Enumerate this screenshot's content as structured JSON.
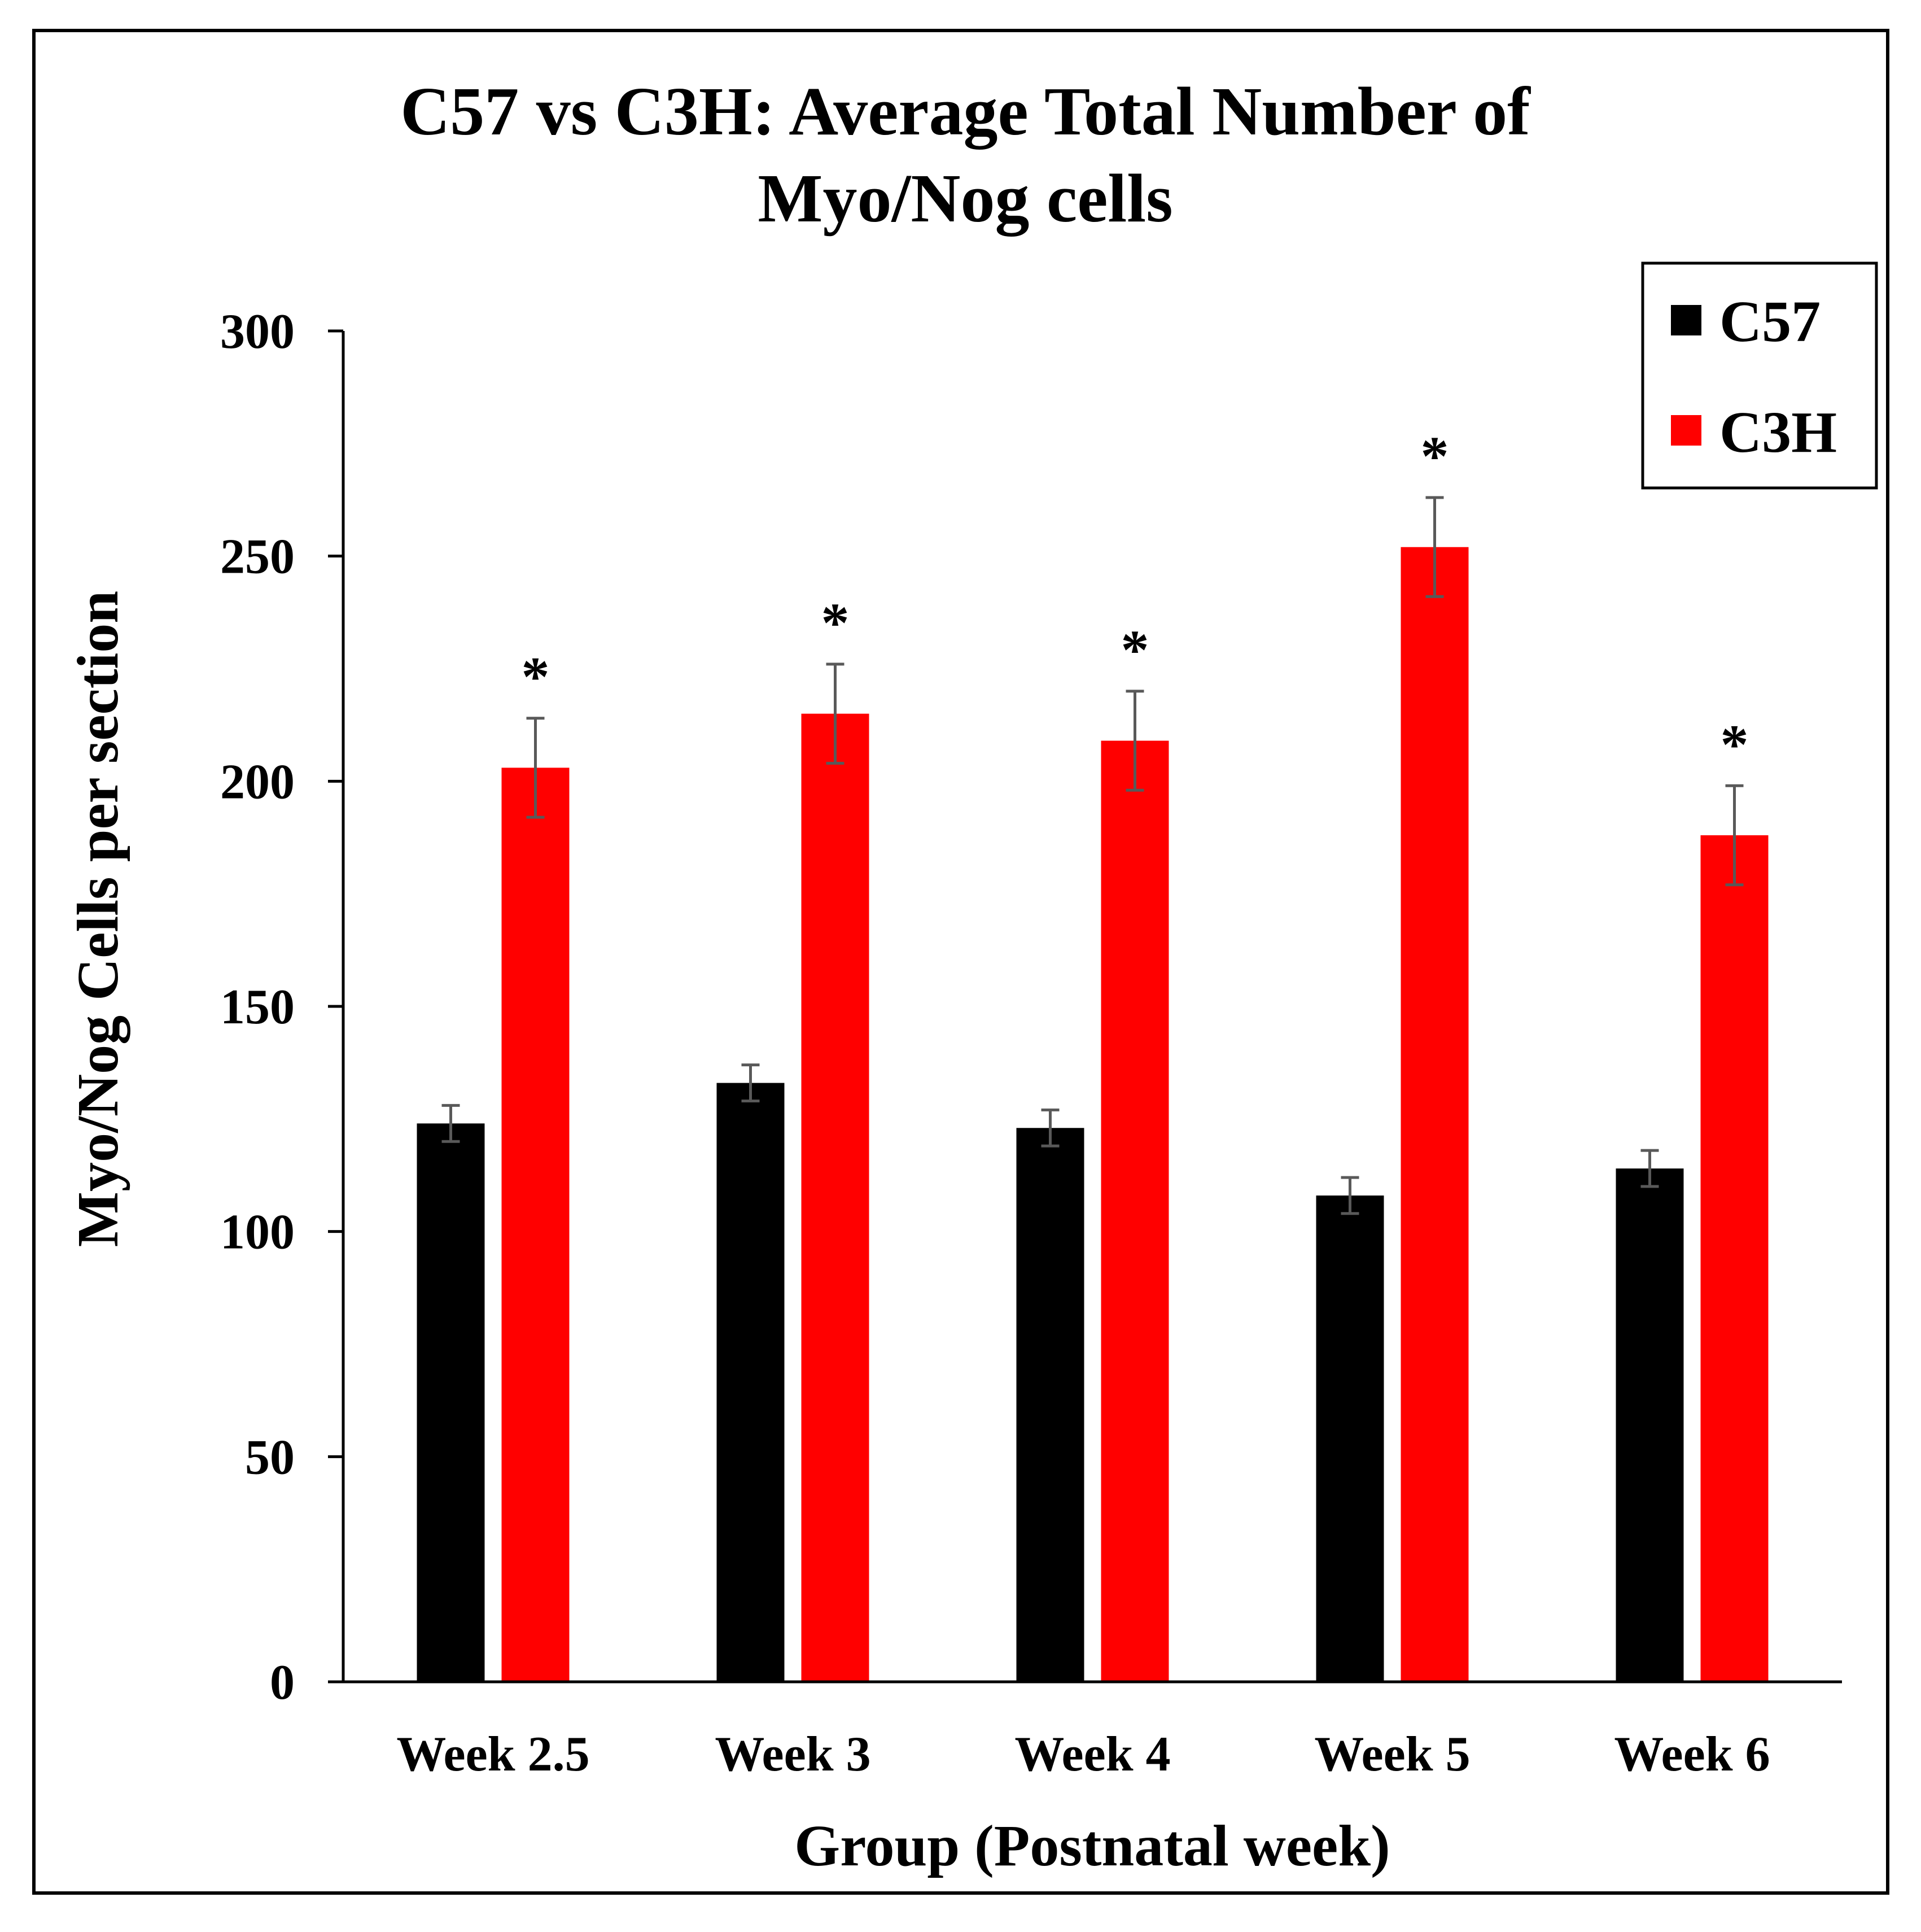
{
  "chart_data": {
    "type": "bar",
    "title_lines": [
      "C57 vs C3H: Average Total Number of",
      "Myo/Nog cells"
    ],
    "xlabel": "Group (Postnatal week)",
    "ylabel": "Myo/Nog Cells per section",
    "categories": [
      "Week 2.5",
      "Week 3",
      "Week 4",
      "Week 5",
      "Week 6"
    ],
    "ylim": [
      0,
      300
    ],
    "yticks": [
      0,
      50,
      100,
      150,
      200,
      250,
      300
    ],
    "ytick_labels": [
      "0",
      "50",
      "100",
      "150",
      "200",
      "250",
      "300"
    ],
    "series": [
      {
        "name": "C57",
        "color": "#000000",
        "values": [
          124,
          133,
          123,
          108,
          114
        ],
        "errors": [
          4,
          4,
          4,
          4,
          4
        ]
      },
      {
        "name": "C3H",
        "color": "#ff0000",
        "values": [
          203,
          215,
          209,
          252,
          188
        ],
        "errors": [
          11,
          11,
          11,
          11,
          11
        ]
      }
    ],
    "significance": [
      "*",
      "*",
      "*",
      "*",
      "*"
    ],
    "legend_position": "top-right",
    "grid": false
  }
}
